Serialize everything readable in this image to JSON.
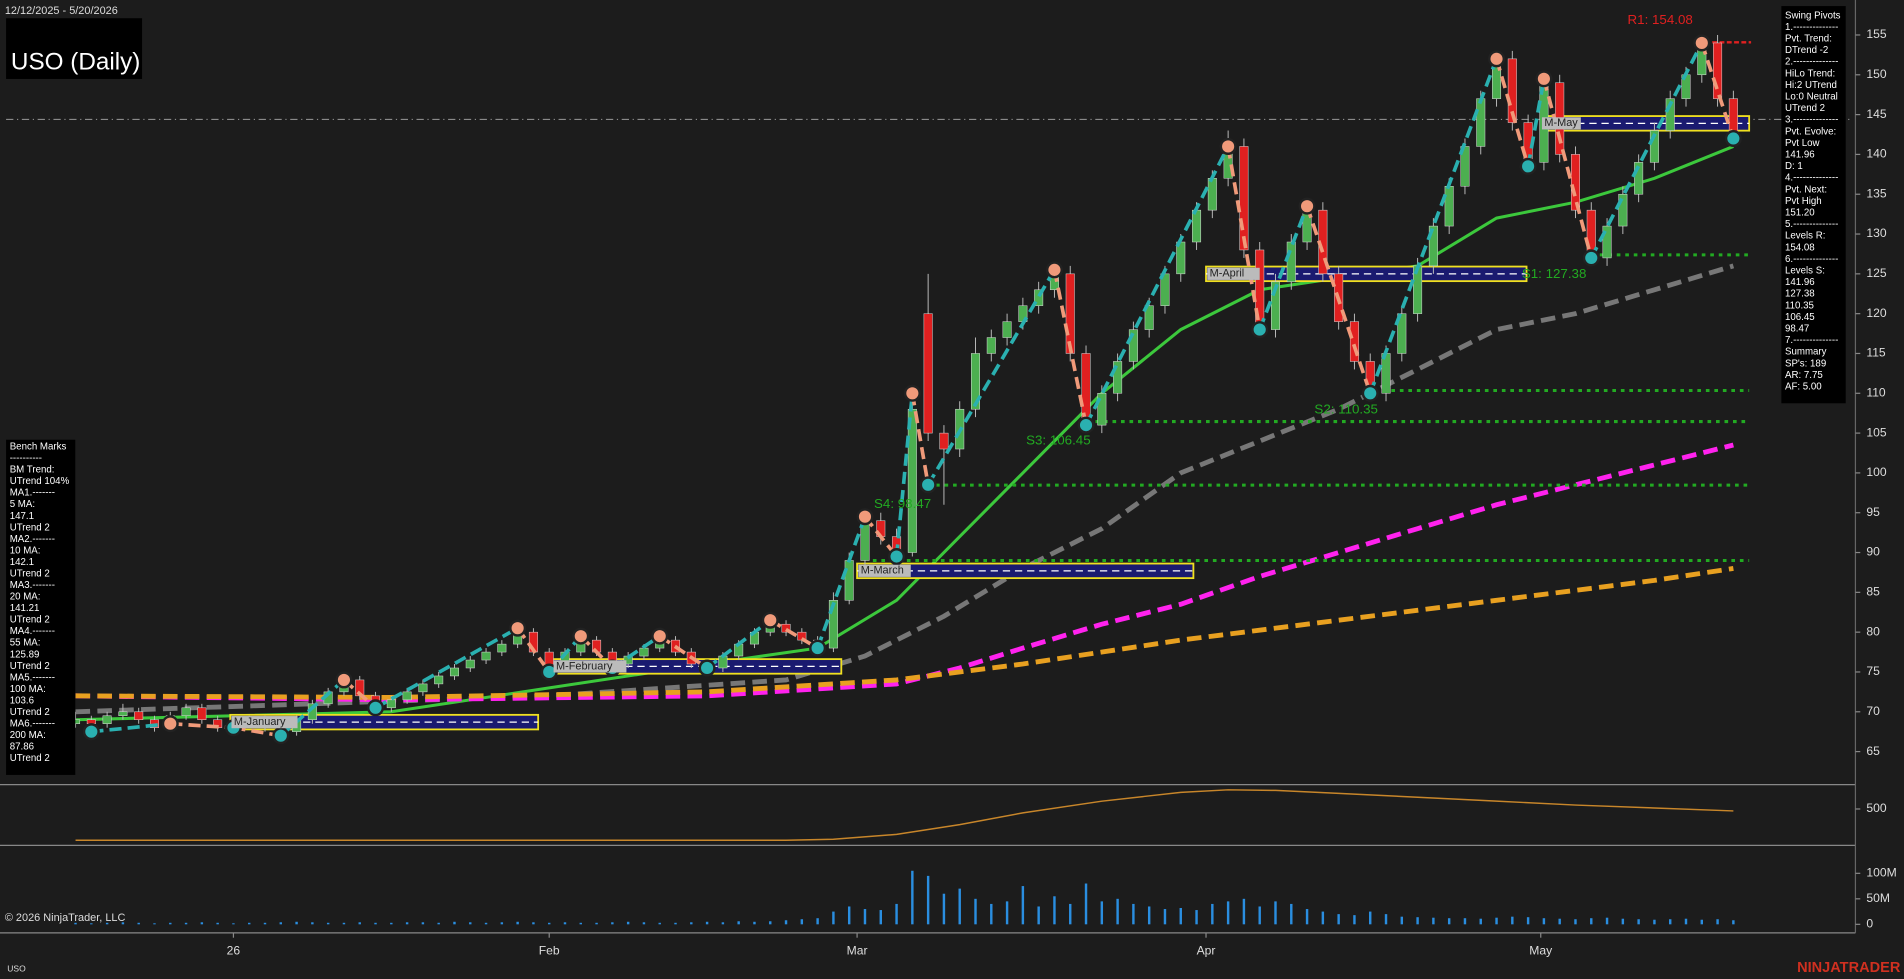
{
  "chart_data": {
    "type": "candlestick",
    "date_range": "12/12/2025 - 5/20/2026",
    "title": "USO (Daily)",
    "xlim": [
      -4.4,
      112.5
    ],
    "xticks": [
      {
        "value": 10,
        "label": "26"
      },
      {
        "value": 30,
        "label": "Feb"
      },
      {
        "value": 49.5,
        "label": "Mar"
      },
      {
        "value": 71.6,
        "label": "Apr"
      },
      {
        "value": 92.8,
        "label": "May"
      }
    ],
    "ylim": [
      61,
      158.63
    ],
    "yticks": [
      65,
      70,
      75,
      80,
      85,
      90,
      95,
      100,
      105,
      110,
      115,
      120,
      125,
      130,
      135,
      140,
      145,
      150,
      155
    ],
    "up_color": "#4caf50",
    "down_color": "#e02020",
    "candles": [
      [
        68.5,
        70,
        68,
        69
      ],
      [
        69,
        69.5,
        68,
        68.5
      ],
      [
        68.5,
        70,
        68,
        69.5
      ],
      [
        69.5,
        71,
        69,
        70
      ],
      [
        70,
        70.5,
        68.5,
        69
      ],
      [
        69,
        69.5,
        67.5,
        68
      ],
      [
        68,
        70,
        67.5,
        69.5
      ],
      [
        69.5,
        71,
        69,
        70.5
      ],
      [
        70.5,
        71,
        68.5,
        69
      ],
      [
        69,
        69.5,
        67.5,
        68
      ],
      [
        68,
        69,
        67.5,
        68.5
      ],
      [
        68.5,
        69.5,
        68,
        69
      ],
      [
        69,
        69.5,
        67.5,
        68
      ],
      [
        68,
        68.5,
        66.5,
        67.5
      ],
      [
        67.5,
        69.5,
        67,
        69
      ],
      [
        69,
        71.5,
        68.5,
        71
      ],
      [
        71,
        73,
        70.5,
        72.5
      ],
      [
        72.5,
        75,
        72,
        74
      ],
      [
        74,
        74.5,
        71.5,
        72
      ],
      [
        72,
        72.5,
        70,
        70.5
      ],
      [
        70.5,
        72,
        70,
        71.5
      ],
      [
        71.5,
        73,
        71,
        72.5
      ],
      [
        72.5,
        74,
        72,
        73.5
      ],
      [
        73.5,
        75,
        73,
        74.5
      ],
      [
        74.5,
        76,
        74,
        75.5
      ],
      [
        75.5,
        77,
        75,
        76.5
      ],
      [
        76.5,
        78,
        76,
        77.5
      ],
      [
        77.5,
        79,
        77,
        78.5
      ],
      [
        78.5,
        81,
        78,
        80
      ],
      [
        80,
        80.5,
        77,
        77.5
      ],
      [
        77.5,
        78,
        75,
        75.5
      ],
      [
        75.5,
        78,
        75,
        77.5
      ],
      [
        77.5,
        80,
        77,
        79
      ],
      [
        79,
        79.5,
        77,
        77.5
      ],
      [
        77.5,
        78,
        75.5,
        76
      ],
      [
        76,
        77.5,
        75.5,
        77
      ],
      [
        77,
        78.5,
        76.5,
        78
      ],
      [
        78,
        80,
        77.5,
        79
      ],
      [
        79,
        79.5,
        77,
        77.5
      ],
      [
        77.5,
        78,
        75.5,
        76
      ],
      [
        76,
        76.5,
        75,
        75.5
      ],
      [
        75.5,
        77.5,
        75,
        77
      ],
      [
        77,
        79,
        76.5,
        78.5
      ],
      [
        78.5,
        80.5,
        78,
        80
      ],
      [
        80,
        82,
        79.5,
        81
      ],
      [
        81,
        81.5,
        79.5,
        80
      ],
      [
        80,
        80.5,
        78.5,
        79
      ],
      [
        79,
        79.5,
        77.5,
        78
      ],
      [
        78,
        85,
        77.5,
        84
      ],
      [
        84,
        90,
        83.5,
        89
      ],
      [
        89,
        95,
        88,
        94
      ],
      [
        94,
        95,
        91,
        92
      ],
      [
        92,
        93,
        89,
        90
      ],
      [
        90,
        110,
        89.5,
        108
      ],
      [
        120,
        125,
        104,
        105
      ],
      [
        105,
        106,
        96,
        103
      ],
      [
        103,
        109,
        102,
        108
      ],
      [
        108,
        117,
        107,
        115
      ],
      [
        115,
        118,
        114,
        117
      ],
      [
        117,
        120,
        116,
        119
      ],
      [
        119,
        122,
        118,
        121
      ],
      [
        121,
        124,
        120,
        123
      ],
      [
        123,
        126,
        122,
        125
      ],
      [
        125,
        126,
        114,
        115
      ],
      [
        115,
        116,
        105,
        106
      ],
      [
        106,
        111,
        105,
        110
      ],
      [
        110,
        115,
        109,
        114
      ],
      [
        114,
        119,
        113,
        118
      ],
      [
        118,
        122,
        117,
        121
      ],
      [
        121,
        126,
        120,
        125
      ],
      [
        125,
        130,
        124,
        129
      ],
      [
        129,
        134,
        128,
        133
      ],
      [
        133,
        138,
        132,
        137
      ],
      [
        137,
        143,
        136,
        141
      ],
      [
        141,
        142,
        127,
        128
      ],
      [
        128,
        129,
        117,
        118
      ],
      [
        118,
        125,
        117,
        124
      ],
      [
        124,
        130,
        123,
        129
      ],
      [
        129,
        134,
        128,
        133
      ],
      [
        133,
        134,
        124,
        125
      ],
      [
        125,
        126,
        118,
        119
      ],
      [
        119,
        120,
        113,
        114
      ],
      [
        114,
        115,
        109,
        110
      ],
      [
        110,
        116,
        109,
        115
      ],
      [
        115,
        121,
        114,
        120
      ],
      [
        120,
        127,
        119,
        126
      ],
      [
        126,
        132,
        125,
        131
      ],
      [
        131,
        137,
        130,
        136
      ],
      [
        136,
        142,
        135,
        141
      ],
      [
        141,
        148,
        140,
        147
      ],
      [
        147,
        153,
        146,
        152
      ],
      [
        152,
        153,
        143,
        144
      ],
      [
        144,
        145,
        138,
        139
      ],
      [
        139,
        150,
        138,
        149
      ],
      [
        149,
        150,
        139,
        140
      ],
      [
        140,
        141,
        132,
        133
      ],
      [
        133,
        134,
        126,
        127
      ],
      [
        127,
        132,
        126,
        131
      ],
      [
        131,
        136,
        130,
        135
      ],
      [
        135,
        140,
        134,
        139
      ],
      [
        139,
        144,
        138,
        143
      ],
      [
        143,
        148,
        142,
        147
      ],
      [
        147,
        151,
        146,
        150
      ],
      [
        150,
        155,
        149,
        154
      ],
      [
        154,
        155,
        146,
        147
      ],
      [
        147,
        148,
        141,
        142
      ]
    ],
    "moving_averages": [
      {
        "color": "#3cc83c",
        "dashed": false,
        "x": [
          0,
          20,
          30,
          40,
          47,
          52,
          56,
          60,
          65,
          70,
          75,
          80,
          85,
          90,
          95,
          100,
          105
        ],
        "values": [
          69,
          70,
          73,
          76,
          78,
          84,
          92,
          100,
          110,
          118,
          123,
          124.5,
          126,
          132,
          134,
          137,
          141
        ]
      },
      {
        "color": "#777777",
        "dashed": true,
        "x": [
          0,
          30,
          45,
          50,
          55,
          60,
          65,
          70,
          75,
          80,
          85,
          90,
          95,
          100,
          105
        ],
        "values": [
          70,
          72,
          74,
          77,
          82,
          88,
          93,
          100,
          104,
          108,
          113,
          118,
          120,
          123,
          126
        ]
      },
      {
        "color": "#ff22ee",
        "dashed": true,
        "x": [
          0,
          20,
          40,
          52,
          56,
          60,
          65,
          70,
          75,
          80,
          85,
          90,
          95,
          100,
          105
        ],
        "values": [
          72,
          71.5,
          72,
          73.5,
          75.5,
          78,
          81,
          83.5,
          87,
          90,
          93,
          96,
          98.5,
          101,
          103.5
        ]
      },
      {
        "color": "#e8a020",
        "dashed": true,
        "x": [
          0,
          20,
          40,
          52,
          60,
          70,
          80,
          90,
          100,
          105
        ],
        "values": [
          72,
          71.8,
          72.5,
          74,
          76,
          79,
          81.5,
          84,
          86.5,
          88
        ]
      }
    ],
    "swing_pivots": {
      "up_color": "#2ab0b0",
      "down_color": "#f09a7a",
      "x": [
        1,
        6,
        10,
        13,
        17,
        19,
        28,
        30,
        32,
        34,
        37,
        40,
        44,
        47,
        50,
        52,
        53,
        54,
        62,
        64,
        73,
        75,
        78,
        82,
        90,
        92,
        93,
        96,
        103,
        105
      ],
      "values": [
        67.5,
        68.5,
        68,
        67,
        74,
        70.5,
        80.5,
        75,
        79.5,
        75.5,
        79.5,
        75.5,
        81.5,
        78,
        94.5,
        89.5,
        110,
        98.5,
        125.5,
        106,
        141,
        118,
        133.5,
        110,
        152,
        138.5,
        149.5,
        127,
        154,
        142
      ]
    },
    "support_color": "#22aa22",
    "support_lines": [
      {
        "label": "S1: 127.38",
        "value": 127.38,
        "start": 96
      },
      {
        "label": "S2: 110.35",
        "value": 110.35,
        "start": 82.8
      },
      {
        "label": "S3: 106.45",
        "value": 106.45,
        "start": 64.6
      },
      {
        "label": "S4: 98.47",
        "value": 98.47,
        "start": 54.5
      },
      {
        "value": 89,
        "start": 50.5
      }
    ],
    "support_end": 106,
    "resistance": {
      "label": "R1: 154.08",
      "value": 154.08,
      "start": 103.2,
      "color": "#e02020"
    },
    "reference_line": 144.4,
    "month_boxes": [
      {
        "label": "M-January",
        "start": 9.8,
        "end": 29.3,
        "value": 68.7
      },
      {
        "label": "M-February",
        "start": 30.2,
        "end": 48.5,
        "value": 75.7
      },
      {
        "label": "M-March",
        "start": 49.5,
        "end": 70.8,
        "value": 87.7
      },
      {
        "label": "M-April",
        "start": 71.6,
        "end": 91.9,
        "value": 125
      },
      {
        "label": "M-May",
        "start": 92.8,
        "end": 106,
        "value": 143.9
      }
    ],
    "indicator": {
      "color": "#c8862a",
      "ylim": [
        320,
        612
      ],
      "yticks": [
        500
      ],
      "x": [
        0,
        45,
        48,
        52,
        56,
        60,
        65,
        70,
        73,
        76,
        80,
        85,
        90,
        95,
        100,
        105
      ],
      "values": [
        340,
        340,
        345,
        370,
        420,
        480,
        540,
        585,
        598,
        595,
        580,
        560,
        540,
        520,
        505,
        490
      ]
    },
    "volume": {
      "color": "#2a8ee0",
      "ylim": [
        -16.7,
        150
      ],
      "yticks": [
        0,
        {
          "value": 50,
          "label": "50M"
        },
        {
          "value": 100,
          "label": "100M"
        }
      ],
      "values": [
        3,
        2,
        3,
        4,
        3,
        2,
        3,
        3,
        4,
        3,
        2,
        3,
        3,
        4,
        5,
        4,
        3,
        3,
        4,
        3,
        3,
        4,
        4,
        3,
        5,
        4,
        3,
        4,
        5,
        4,
        3,
        4,
        3,
        3,
        4,
        5,
        4,
        3,
        3,
        4,
        5,
        4,
        6,
        5,
        6,
        8,
        10,
        12,
        25,
        35,
        30,
        28,
        40,
        105,
        95,
        60,
        70,
        50,
        40,
        45,
        75,
        35,
        55,
        40,
        80,
        45,
        50,
        40,
        35,
        30,
        32,
        28,
        40,
        45,
        50,
        35,
        45,
        40,
        30,
        25,
        20,
        18,
        25,
        20,
        15,
        14,
        13,
        12,
        12,
        11,
        13,
        15,
        14,
        12,
        11,
        10,
        12,
        13,
        11,
        10,
        9,
        10,
        11,
        9,
        10,
        8
      ]
    }
  },
  "swing_pivots_panel": [
    "Swing Pivots",
    "1.--------------",
    "Pvt. Trend:",
    "DTrend -2",
    "2.--------------",
    "HiLo Trend:",
    "Hi:2 UTrend",
    "Lo:0 Neutral",
    "UTrend 2",
    "3.--------------",
    "Pvt. Evolve:",
    "Pvt Low",
    "141.96",
    "D: 1",
    "4.--------------",
    "Pvt. Next:",
    "Pvt High",
    "151.20",
    "5.--------------",
    "Levels R:",
    "154.08",
    "6.--------------",
    "Levels S:",
    "141.96",
    "127.38",
    "110.35",
    "106.45",
    "98.47",
    "7.--------------",
    "Summary",
    "SP's: 189",
    "AR: 7.75",
    "AF: 5.00"
  ],
  "bench_marks_panel": [
    "Bench Marks",
    "----------",
    "BM Trend:",
    "UTrend 104%",
    "MA1.-------",
    "5 MA:",
    "147.1",
    "UTrend 2",
    "MA2.-------",
    "10 MA:",
    "142.1",
    "UTrend 2",
    "MA3.-------",
    "20 MA:",
    "141.21",
    "UTrend 2",
    "MA4.-------",
    "55 MA:",
    "125.89",
    "UTrend 2",
    "MA5.-------",
    "100 MA:",
    "103.6",
    "UTrend 2",
    "MA6.-------",
    "200 MA:",
    "87.86",
    "UTrend 2"
  ],
  "footer": {
    "copyright": "© 2026 NinjaTrader, LLC",
    "symbol": "USO",
    "brand": "NINJATRADER"
  }
}
